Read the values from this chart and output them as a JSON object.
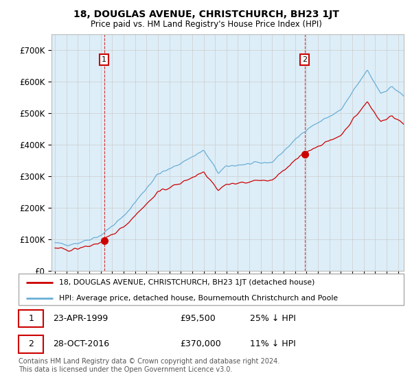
{
  "title": "18, DOUGLAS AVENUE, CHRISTCHURCH, BH23 1JT",
  "subtitle": "Price paid vs. HM Land Registry's House Price Index (HPI)",
  "ylim": [
    0,
    750000
  ],
  "yticks": [
    0,
    100000,
    200000,
    300000,
    400000,
    500000,
    600000,
    700000
  ],
  "ytick_labels": [
    "£0",
    "£100K",
    "£200K",
    "£300K",
    "£400K",
    "£500K",
    "£600K",
    "£700K"
  ],
  "hpi_color": "#6aaed6",
  "price_color": "#cc0000",
  "plot_bg_color": "#ddeef8",
  "sale1_year": 1999.3,
  "sale1_price": 95500,
  "sale2_year": 2016.83,
  "sale2_price": 370000,
  "legend_line1": "18, DOUGLAS AVENUE, CHRISTCHURCH, BH23 1JT (detached house)",
  "legend_line2": "HPI: Average price, detached house, Bournemouth Christchurch and Poole",
  "footnote": "Contains HM Land Registry data © Crown copyright and database right 2024.\nThis data is licensed under the Open Government Licence v3.0.",
  "background_color": "#ffffff",
  "grid_color": "#cccccc",
  "xlim_left": 1994.7,
  "xlim_right": 2025.5
}
